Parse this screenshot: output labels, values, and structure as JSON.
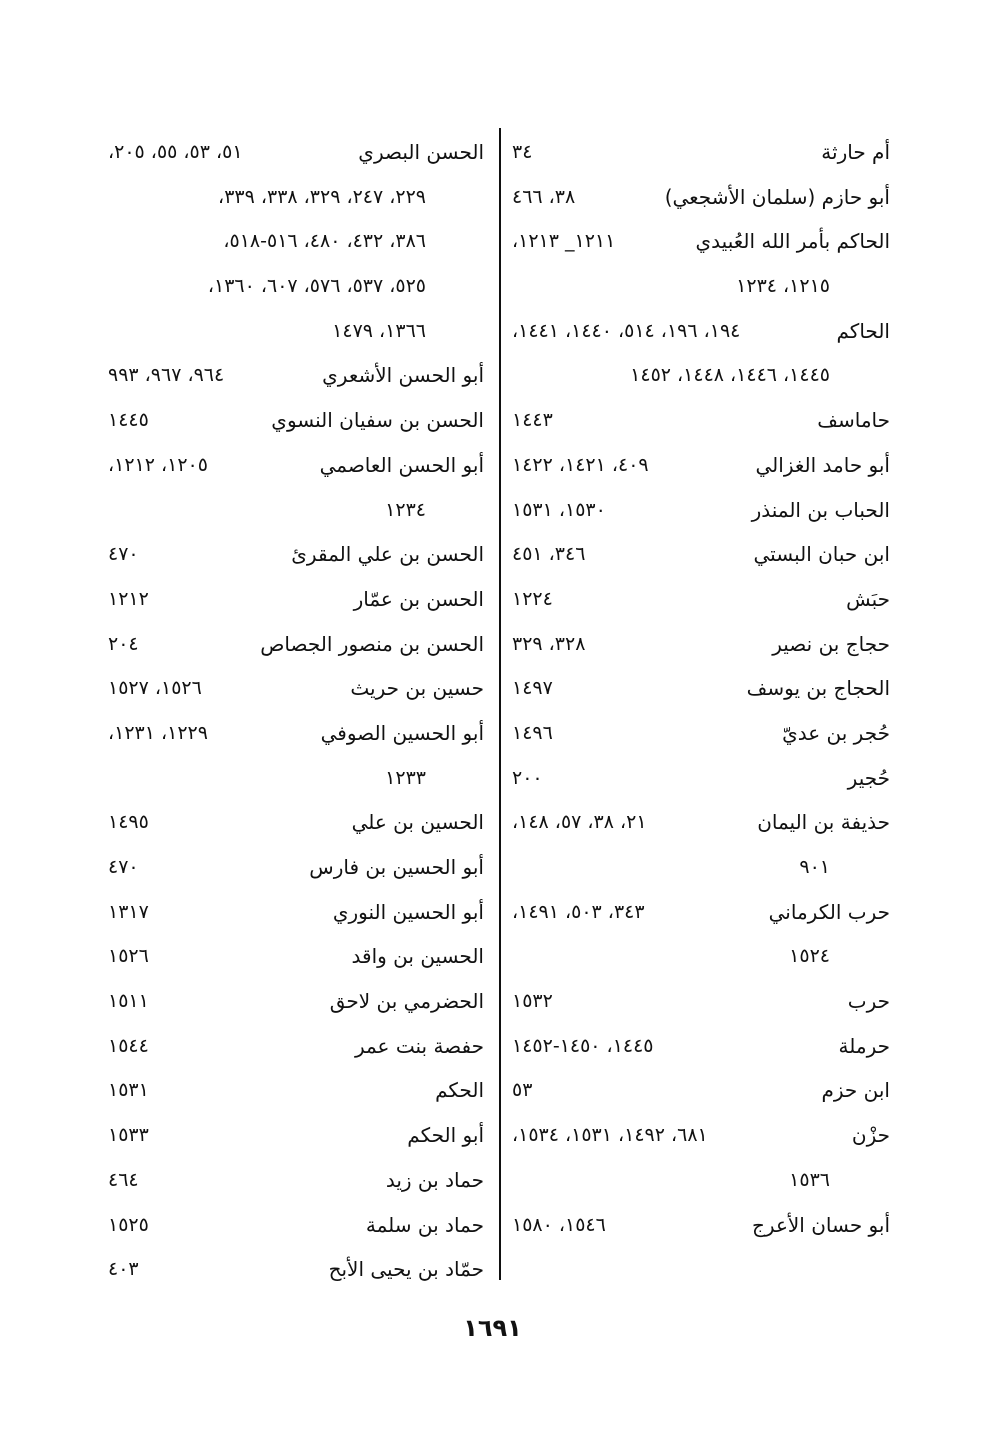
{
  "columns": [
    {
      "id": "right",
      "entries": [
        {
          "name": "أم حارثة",
          "lines": [
            "٣٤"
          ]
        },
        {
          "name": "أبو حازم (سلمان الأشجعي)",
          "lines": [
            "٣٨، ٤٦٦"
          ]
        },
        {
          "name": "الحاكم بأمر الله العُبيدي",
          "lines": [
            "١٢١١_ ١٢١٣،",
            "١٢١٥، ١٢٣٤"
          ]
        },
        {
          "name": "الحاكم",
          "lines": [
            "١٩٤، ١٩٦، ٥١٤، ١٤٤٠، ١٤٤١،",
            "١٤٤٥، ١٤٤٦، ١٤٤٨، ١٤٥٢"
          ]
        },
        {
          "name": "حاماسف",
          "lines": [
            "١٤٤٣"
          ]
        },
        {
          "name": "أبو حامد الغزالي",
          "lines": [
            "٤٠٩، ١٤٢١، ١٤٢٢"
          ]
        },
        {
          "name": "الحباب بن المنذر",
          "lines": [
            "١٥٣٠، ١٥٣١"
          ]
        },
        {
          "name": "ابن حبان البستي",
          "lines": [
            "٣٤٦، ٤٥١"
          ]
        },
        {
          "name": "حبَش",
          "lines": [
            "١٢٢٤"
          ]
        },
        {
          "name": "حجاج بن نصير",
          "lines": [
            "٣٢٨، ٣٢٩"
          ]
        },
        {
          "name": "الحجاج بن يوسف",
          "lines": [
            "١٤٩٧"
          ]
        },
        {
          "name": "حُجر بن عديّ",
          "lines": [
            "١٤٩٦"
          ]
        },
        {
          "name": "حُجير",
          "lines": [
            "٢٠٠"
          ]
        },
        {
          "name": "حذيفة بن اليمان",
          "lines": [
            "٢١، ٣٨، ٥٧، ١٤٨،",
            "٩٠١"
          ]
        },
        {
          "name": "حرب الكرماني",
          "lines": [
            "٣٤٣، ٥٠٣، ١٤٩١،",
            "١٥٢٤"
          ]
        },
        {
          "name": "حرب",
          "lines": [
            "١٥٣٢"
          ]
        },
        {
          "name": "حرملة",
          "lines": [
            "١٤٤٥، ١٤٥٠-١٤٥٢"
          ]
        },
        {
          "name": "ابن حزم",
          "lines": [
            "٥٣"
          ]
        },
        {
          "name": "حزْن",
          "lines": [
            "٦٨١، ١٤٩٢، ١٥٣١، ١٥٣٤،",
            "١٥٣٦"
          ]
        },
        {
          "name": "أبو حسان الأعرج",
          "lines": [
            "١٥٤٦، ١٥٨٠"
          ]
        }
      ]
    },
    {
      "id": "left",
      "entries": [
        {
          "name": "الحسن البصري",
          "lines": [
            "٥١، ٥٣، ٥٥، ٢٠٥،",
            "٢٢٩، ٢٤٧، ٣٢٩، ٣٣٨، ٣٣٩،",
            "٣٨٦، ٤٣٢، ٤٨٠، ٥١٦-٥١٨،",
            "٥٢٥، ٥٣٧، ٥٧٦، ٦٠٧، ١٣٦٠،",
            "١٣٦٦، ١٤٧٩"
          ]
        },
        {
          "name": "أبو الحسن الأشعري",
          "lines": [
            "٩٦٤، ٩٦٧، ٩٩٣"
          ]
        },
        {
          "name": "الحسن بن سفيان النسوي",
          "lines": [
            "١٤٤٥"
          ]
        },
        {
          "name": "أبو الحسن العاصمي",
          "lines": [
            "١٢٠٥، ١٢١٢،",
            "١٢٣٤"
          ]
        },
        {
          "name": "الحسن بن علي المقرئ",
          "lines": [
            "٤٧٠"
          ]
        },
        {
          "name": "الحسن بن عمّار",
          "lines": [
            "١٢١٢"
          ]
        },
        {
          "name": "الحسن بن منصور الجصاص",
          "lines": [
            "٢٠٤"
          ]
        },
        {
          "name": "حسين بن حريث",
          "lines": [
            "١٥٢٦، ١٥٢٧"
          ]
        },
        {
          "name": "أبو الحسين الصوفي",
          "lines": [
            "١٢٢٩، ١٢٣١،",
            "١٢٣٣"
          ]
        },
        {
          "name": "الحسين بن علي",
          "lines": [
            "١٤٩٥"
          ]
        },
        {
          "name": "أبو الحسين بن فارس",
          "lines": [
            "٤٧٠"
          ]
        },
        {
          "name": "أبو الحسين النوري",
          "lines": [
            "١٣١٧"
          ]
        },
        {
          "name": "الحسين بن واقد",
          "lines": [
            "١٥٢٦"
          ]
        },
        {
          "name": "الحضرمي بن لاحق",
          "lines": [
            "١٥١١"
          ]
        },
        {
          "name": "حفصة بنت عمر",
          "lines": [
            "١٥٤٤"
          ]
        },
        {
          "name": "الحكم",
          "lines": [
            "١٥٣١"
          ]
        },
        {
          "name": "أبو الحكم",
          "lines": [
            "١٥٣٣"
          ]
        },
        {
          "name": "حماد بن زيد",
          "lines": [
            "٤٦٤"
          ]
        },
        {
          "name": "حماد بن سلمة",
          "lines": [
            "١٥٢٥"
          ]
        },
        {
          "name": "حمّاد بن يحيى الأبح",
          "lines": [
            "٤٠٣"
          ]
        }
      ]
    }
  ],
  "page_number": "١٦٩١"
}
